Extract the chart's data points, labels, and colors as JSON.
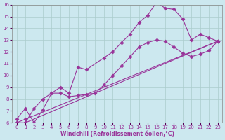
{
  "xlabel": "Windchill (Refroidissement éolien,°C)",
  "ylabel": "",
  "xlim": [
    -0.5,
    23.5
  ],
  "ylim": [
    6,
    16
  ],
  "xticks": [
    0,
    1,
    2,
    3,
    4,
    5,
    6,
    7,
    8,
    9,
    10,
    11,
    12,
    13,
    14,
    15,
    16,
    17,
    18,
    19,
    20,
    21,
    22,
    23
  ],
  "yticks": [
    6,
    7,
    8,
    9,
    10,
    11,
    12,
    13,
    14,
    15,
    16
  ],
  "bg_color": "#cce8ef",
  "grid_color": "#aacccc",
  "line_color": "#993399",
  "line1_x": [
    0,
    1,
    2,
    3,
    4,
    5,
    6,
    7,
    8,
    10,
    11,
    12,
    13,
    14,
    15,
    16,
    17,
    18,
    19,
    20,
    21,
    22,
    23
  ],
  "line1_y": [
    6.3,
    7.2,
    6.0,
    7.1,
    8.5,
    9.0,
    8.5,
    10.7,
    10.5,
    11.5,
    12.0,
    12.8,
    13.5,
    14.5,
    15.1,
    16.2,
    15.7,
    15.6,
    14.8,
    13.0,
    13.5,
    13.2,
    12.9
  ],
  "line2_x": [
    1,
    2,
    3,
    4,
    5,
    6,
    7,
    8,
    9,
    10,
    11,
    12,
    13,
    14,
    15,
    16,
    17,
    18,
    19,
    20,
    21,
    22,
    23
  ],
  "line2_y": [
    6.0,
    7.2,
    8.0,
    8.5,
    8.5,
    8.2,
    8.3,
    8.4,
    8.5,
    9.2,
    10.0,
    10.8,
    11.6,
    12.4,
    12.8,
    13.0,
    12.9,
    12.4,
    11.9,
    11.6,
    11.8,
    12.1,
    12.9
  ],
  "line3_x": [
    0,
    1,
    23
  ],
  "line3_y": [
    6.0,
    6.0,
    12.9
  ],
  "line4_x": [
    0,
    1,
    23
  ],
  "line4_y": [
    6.0,
    6.3,
    12.9
  ]
}
